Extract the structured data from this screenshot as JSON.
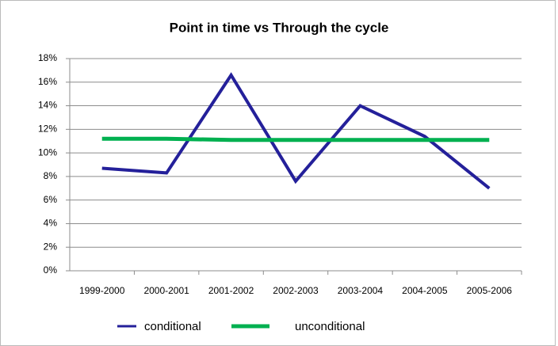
{
  "chart_data": {
    "type": "line",
    "title": "Point in time vs Through the cycle",
    "categories": [
      "1999-2000",
      "2000-2001",
      "2001-2002",
      "2002-2003",
      "2003-2004",
      "2004-2005",
      "2005-2006"
    ],
    "series": [
      {
        "name": "conditional",
        "color": "#24209a",
        "values": [
          8.7,
          8.3,
          16.6,
          7.6,
          14.0,
          11.4,
          7.0
        ]
      },
      {
        "name": "unconditional",
        "color": "#00b050",
        "values": [
          11.2,
          11.2,
          11.1,
          11.1,
          11.1,
          11.1,
          11.1
        ]
      }
    ],
    "ylim": [
      0,
      18
    ],
    "yticks": [
      {
        "value": 0,
        "label": "0%"
      },
      {
        "value": 2,
        "label": "2%"
      },
      {
        "value": 4,
        "label": "4%"
      },
      {
        "value": 6,
        "label": "6%"
      },
      {
        "value": 8,
        "label": "8%"
      },
      {
        "value": 10,
        "label": "10%"
      },
      {
        "value": 12,
        "label": "12%"
      },
      {
        "value": 14,
        "label": "14%"
      },
      {
        "value": 16,
        "label": "16%"
      },
      {
        "value": 18,
        "label": "18%"
      }
    ],
    "grid": true
  }
}
